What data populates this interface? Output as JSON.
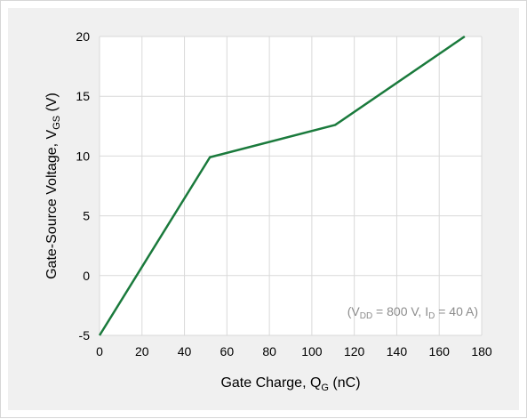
{
  "chart_data": {
    "type": "line",
    "title": "",
    "xlabel": {
      "main": "Gate Charge, Q",
      "sub": "G",
      "unit": " (nC)"
    },
    "ylabel": {
      "main": "Gate-Source Voltage, V",
      "sub": "GS",
      "unit": " (V)"
    },
    "xlim": [
      0,
      180
    ],
    "ylim": [
      -5,
      20
    ],
    "xticks": [
      0,
      20,
      40,
      60,
      80,
      100,
      120,
      140,
      160,
      180
    ],
    "yticks": [
      -5,
      0,
      5,
      10,
      15,
      20
    ],
    "grid": true,
    "line_color": "#1a7a3c",
    "series": [
      {
        "x": [
          0,
          52,
          111,
          172
        ],
        "y": [
          -5,
          9.9,
          12.6,
          20
        ]
      }
    ],
    "annotation": {
      "parts": [
        {
          "text": "(V",
          "sub": false
        },
        {
          "text": "DD",
          "sub": true
        },
        {
          "text": " = 800 V, I",
          "sub": false
        },
        {
          "text": "D",
          "sub": true
        },
        {
          "text": " = 40 A)",
          "sub": false
        }
      ]
    }
  }
}
